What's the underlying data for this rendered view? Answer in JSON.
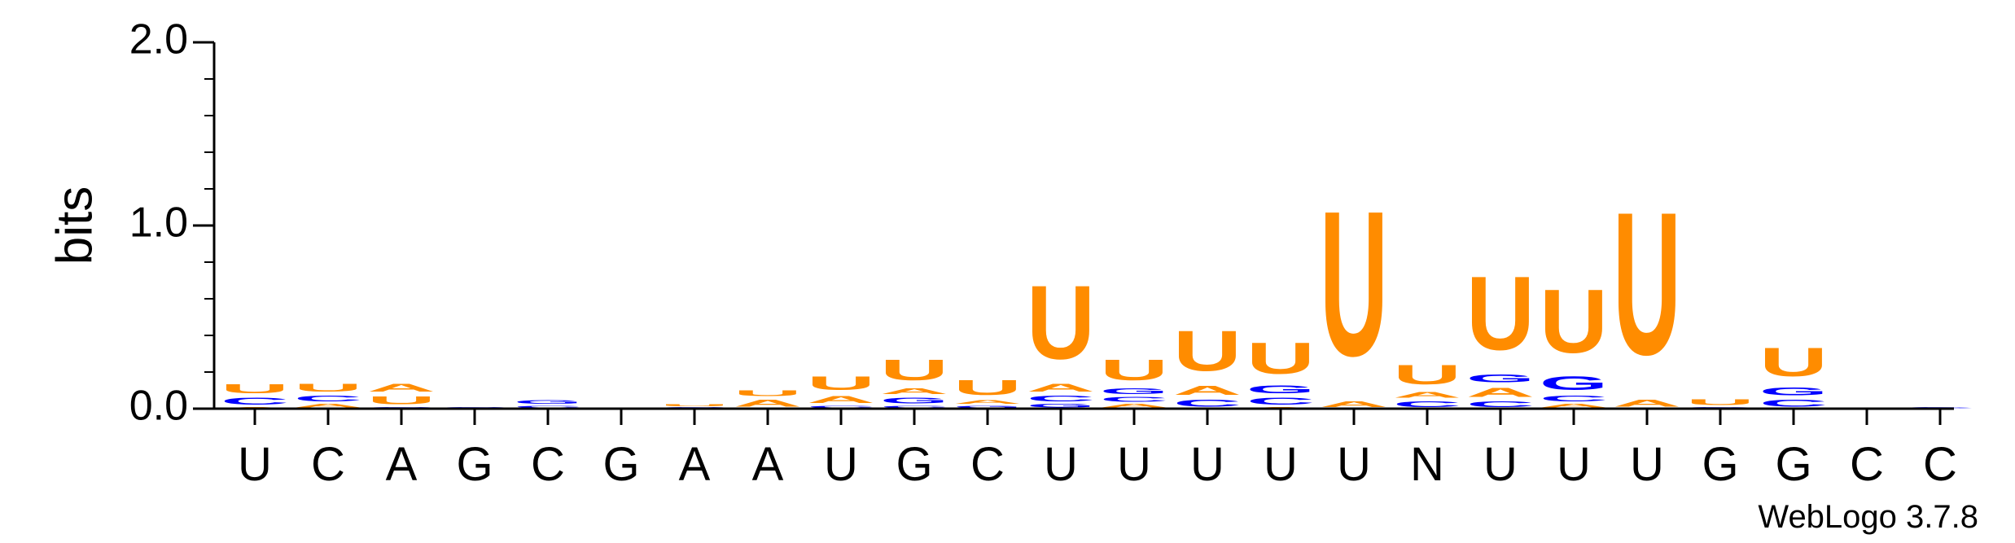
{
  "chart_data": {
    "type": "sequence-logo",
    "ylabel": "bits",
    "ylim": [
      0,
      2
    ],
    "yticks": [
      "0.0",
      "1.0",
      "2.0"
    ],
    "x_labels": [
      "U",
      "C",
      "A",
      "G",
      "C",
      "G",
      "A",
      "A",
      "U",
      "G",
      "C",
      "U",
      "U",
      "U",
      "U",
      "U",
      "N",
      "U",
      "U",
      "U",
      "G",
      "G",
      "C",
      "C"
    ],
    "colors": {
      "U": "#ff8c00",
      "A": "#ff8c00",
      "G": "#0000ff",
      "C": "#0000ff"
    },
    "stacks": [
      [
        [
          "A",
          0.01
        ],
        [
          "C",
          0.06
        ],
        [
          "U",
          0.08
        ]
      ],
      [
        [
          "A",
          0.03
        ],
        [
          "C",
          0.05
        ],
        [
          "U",
          0.07
        ]
      ],
      [
        [
          "C",
          0.01
        ],
        [
          "U",
          0.07
        ],
        [
          "A",
          0.07
        ]
      ],
      [
        [
          "C",
          0.01
        ]
      ],
      [
        [
          "C",
          0.02
        ],
        [
          "G",
          0.03
        ]
      ],
      [],
      [
        [
          "C",
          0.01
        ],
        [
          "U",
          0.02
        ]
      ],
      [
        [
          "A",
          0.06
        ],
        [
          "U",
          0.05
        ]
      ],
      [
        [
          "C",
          0.02
        ],
        [
          "A",
          0.06
        ],
        [
          "U",
          0.12
        ]
      ],
      [
        [
          "C",
          0.02
        ],
        [
          "G",
          0.05
        ],
        [
          "A",
          0.05
        ],
        [
          "U",
          0.18
        ]
      ],
      [
        [
          "G",
          0.02
        ],
        [
          "A",
          0.03
        ],
        [
          "U",
          0.13
        ]
      ],
      [
        [
          "G",
          0.03
        ],
        [
          "C",
          0.05
        ],
        [
          "A",
          0.07
        ],
        [
          "U",
          0.64
        ]
      ],
      [
        [
          "A",
          0.03
        ],
        [
          "C",
          0.04
        ],
        [
          "G",
          0.05
        ],
        [
          "U",
          0.18
        ]
      ],
      [
        [
          "C",
          0.06
        ],
        [
          "A",
          0.08
        ],
        [
          "U",
          0.35
        ]
      ],
      [
        [
          "A",
          0.01
        ],
        [
          "C",
          0.06
        ],
        [
          "G",
          0.07
        ],
        [
          "U",
          0.27
        ]
      ],
      [
        [
          "A",
          0.05
        ],
        [
          "U",
          1.26
        ]
      ],
      [
        [
          "C",
          0.05
        ],
        [
          "A",
          0.05
        ],
        [
          "U",
          0.17
        ]
      ],
      [
        [
          "C",
          0.05
        ],
        [
          "A",
          0.08
        ],
        [
          "G",
          0.07
        ],
        [
          "U",
          0.64
        ]
      ],
      [
        [
          "A",
          0.03
        ],
        [
          "C",
          0.05
        ],
        [
          "G",
          0.12
        ],
        [
          "U",
          0.55
        ]
      ],
      [
        [
          "A",
          0.06
        ],
        [
          "U",
          1.24
        ]
      ],
      [
        [
          "G",
          0.01
        ],
        [
          "U",
          0.05
        ]
      ],
      [
        [
          "C",
          0.06
        ],
        [
          "G",
          0.07
        ],
        [
          "U",
          0.25
        ]
      ],
      [],
      [
        [
          "C",
          0.01
        ]
      ]
    ],
    "watermark": "WebLogo 3.7.8"
  }
}
